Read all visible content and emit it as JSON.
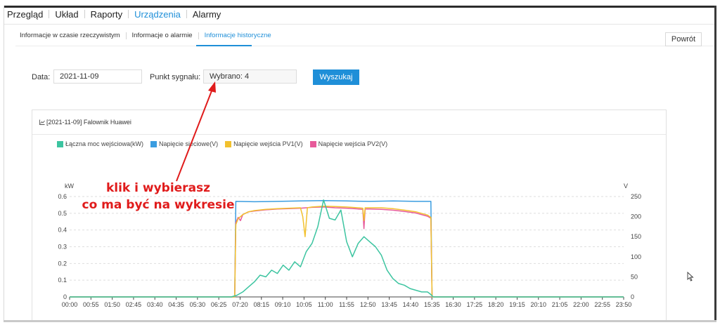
{
  "nav": {
    "items": [
      {
        "label": "Przegląd",
        "active": false
      },
      {
        "label": "Układ",
        "active": false
      },
      {
        "label": "Raporty",
        "active": false
      },
      {
        "label": "Urządzenia",
        "active": true
      },
      {
        "label": "Alarmy",
        "active": false
      }
    ]
  },
  "subtabs": [
    {
      "label": "Informacje w czasie rzeczywistym",
      "active": false
    },
    {
      "label": "Informacje o alarmie",
      "active": false
    },
    {
      "label": "Informacje historyczne",
      "active": true
    }
  ],
  "back_label": "Powrót",
  "form": {
    "date_label": "Data:",
    "date_value": "2021-11-09",
    "signal_label": "Punkt sygnału:",
    "signal_value": "Wybrano: 4",
    "search_label": "Wyszukaj"
  },
  "panel": {
    "title": "[2021-11-09] Falownik Huawei",
    "chart_icon": "line-chart-icon"
  },
  "annotation": {
    "line1": "klik i wybierasz",
    "line2": "co ma być na wykresie"
  },
  "colors": {
    "accent": "#1f8fd8",
    "series_power": "#3cc4a0",
    "series_grid_voltage": "#3b9de0",
    "series_pv1": "#f2c12e",
    "series_pv2": "#e75a9a",
    "annotation": "#e01b1b"
  },
  "chart_data": {
    "type": "line",
    "x_ticks": [
      "00:00",
      "00:55",
      "01:50",
      "02:45",
      "03:40",
      "04:35",
      "05:30",
      "06:25",
      "07:20",
      "08:15",
      "09:10",
      "10:05",
      "11:00",
      "11:55",
      "12:50",
      "13:45",
      "14:40",
      "15:35",
      "16:30",
      "17:25",
      "18:20",
      "19:15",
      "20:10",
      "21:05",
      "22:00",
      "22:55",
      "23:50"
    ],
    "x_range_hours": [
      0,
      24
    ],
    "y_left": {
      "unit": "kW",
      "range": [
        0,
        0.6
      ],
      "ticks": [
        "0",
        "0.1",
        "0.2",
        "0.3",
        "0.4",
        "0.5",
        "0.6"
      ]
    },
    "y_right": {
      "unit": "V",
      "range": [
        0,
        250
      ],
      "ticks": [
        "0",
        "50",
        "100",
        "150",
        "200",
        "250"
      ]
    },
    "grid": "horizontal-dashed",
    "legend_position": "top-left",
    "series": [
      {
        "name": "Łączna moc wejściowa(kW)",
        "axis": "left",
        "color": "#3cc4a0",
        "x": [
          0,
          7.0,
          7.25,
          7.5,
          7.75,
          8.0,
          8.25,
          8.5,
          8.75,
          9.0,
          9.25,
          9.5,
          9.75,
          10.0,
          10.25,
          10.5,
          10.75,
          11.0,
          11.25,
          11.5,
          11.75,
          12.0,
          12.25,
          12.5,
          12.75,
          13.0,
          13.25,
          13.5,
          13.75,
          14.0,
          14.25,
          14.5,
          14.75,
          15.0,
          15.25,
          15.5,
          15.6,
          15.75,
          24
        ],
        "y": [
          0,
          0,
          0.01,
          0.03,
          0.06,
          0.09,
          0.13,
          0.12,
          0.16,
          0.14,
          0.19,
          0.16,
          0.21,
          0.18,
          0.27,
          0.32,
          0.42,
          0.58,
          0.47,
          0.46,
          0.52,
          0.33,
          0.24,
          0.32,
          0.36,
          0.33,
          0.3,
          0.25,
          0.16,
          0.11,
          0.08,
          0.07,
          0.05,
          0.04,
          0.03,
          0.03,
          0.02,
          0,
          0
        ]
      },
      {
        "name": "Napięcie sieciowe(V)",
        "axis": "right",
        "color": "#3b9de0",
        "x": [
          0,
          7.15,
          7.2,
          8.0,
          9.0,
          10.0,
          11.0,
          12.0,
          13.0,
          14.0,
          15.0,
          15.65,
          15.7,
          24
        ],
        "y": [
          0,
          0,
          238,
          237,
          238,
          239,
          240,
          239,
          238,
          239,
          238,
          238,
          0,
          0
        ]
      },
      {
        "name": "Napięcie wejścia PV1(V)",
        "axis": "right",
        "color": "#f2c12e",
        "x": [
          0,
          7.15,
          7.2,
          7.3,
          7.5,
          7.75,
          8.0,
          8.5,
          9.0,
          9.5,
          10.0,
          10.1,
          10.2,
          10.3,
          10.5,
          11.0,
          11.5,
          12.0,
          12.5,
          12.7,
          12.75,
          12.8,
          13.0,
          13.5,
          14.0,
          14.5,
          15.0,
          15.5,
          15.65,
          15.7,
          24
        ],
        "y": [
          0,
          0,
          180,
          195,
          205,
          212,
          215,
          218,
          220,
          221,
          222,
          200,
          150,
          222,
          224,
          226,
          225,
          224,
          222,
          221,
          190,
          222,
          222,
          222,
          220,
          216,
          212,
          204,
          198,
          0,
          0
        ]
      },
      {
        "name": "Napięcie wejścia PV2(V)",
        "axis": "right",
        "color": "#e75a9a",
        "x": [
          0,
          7.15,
          7.2,
          7.3,
          7.4,
          7.5,
          7.75,
          8.0,
          8.5,
          9.0,
          9.5,
          10.0,
          10.5,
          11.0,
          11.5,
          12.0,
          12.5,
          12.7,
          12.75,
          12.8,
          13.0,
          13.5,
          14.0,
          14.5,
          15.0,
          15.5,
          15.65,
          15.7,
          24
        ],
        "y": [
          0,
          0,
          185,
          198,
          190,
          205,
          212,
          214,
          217,
          219,
          220,
          221,
          223,
          224,
          222,
          221,
          219,
          218,
          170,
          219,
          219,
          218,
          216,
          213,
          209,
          201,
          196,
          0,
          0
        ]
      }
    ]
  }
}
